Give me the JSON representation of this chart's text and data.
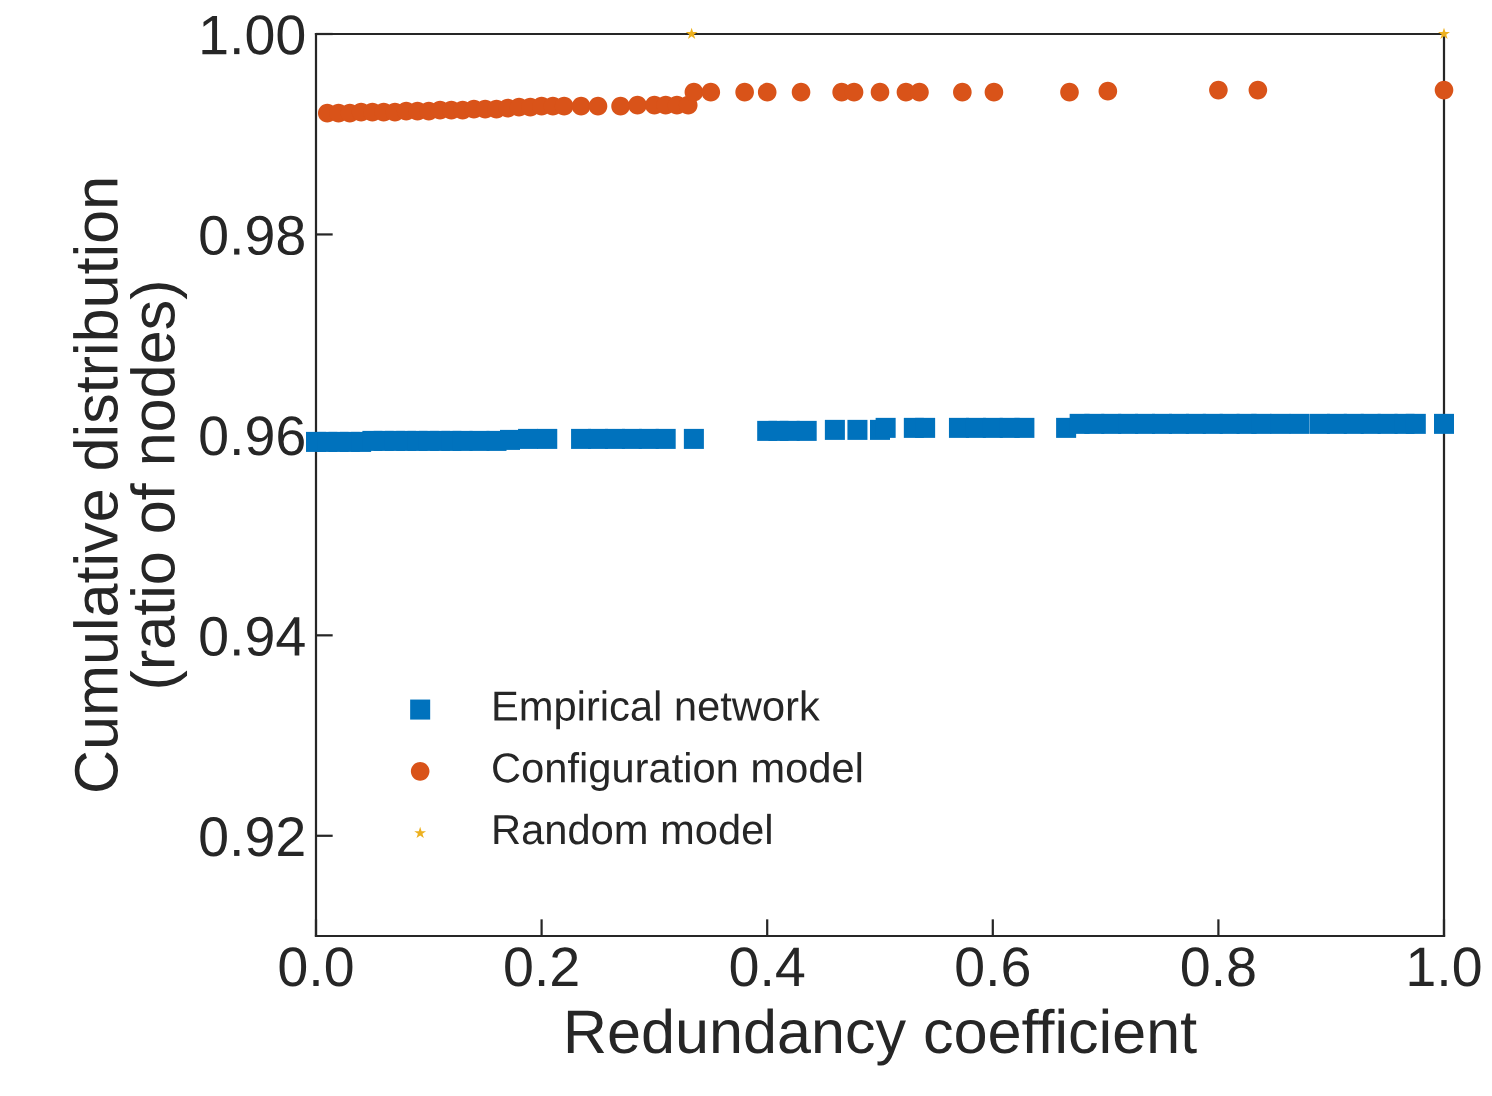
{
  "chart_data": {
    "type": "scatter",
    "xlabel": "Redundancy coefficient",
    "ylabel": "Cumulative distribution\n(ratio of nodes)",
    "xlim": [
      0,
      1
    ],
    "ylim": [
      0.91,
      1.0
    ],
    "xticks": [
      {
        "value": 0,
        "label": "0.0"
      },
      0.2,
      0.4,
      0.6,
      0.8,
      {
        "value": 1,
        "label": "1.0"
      }
    ],
    "yticks": [
      0.92,
      0.94,
      0.96,
      0.98,
      {
        "value": 1.0,
        "label": "1.00"
      }
    ],
    "legend": "bottom left",
    "grid": false,
    "series": [
      {
        "name": "Empirical network",
        "color": "#0072bd",
        "marker": "square",
        "x": [
          0.0,
          0.01,
          0.02,
          0.03,
          0.04,
          0.05,
          0.06,
          0.07,
          0.08,
          0.09,
          0.1,
          0.11,
          0.12,
          0.13,
          0.145,
          0.16,
          0.172,
          0.188,
          0.205,
          0.235,
          0.25,
          0.265,
          0.28,
          0.295,
          0.31,
          0.335,
          0.4,
          0.41,
          0.42,
          0.435,
          0.46,
          0.48,
          0.5,
          0.505,
          0.53,
          0.54,
          0.57,
          0.585,
          0.6,
          0.615,
          0.628,
          0.665,
          0.677,
          0.69,
          0.705,
          0.72,
          0.735,
          0.75,
          0.765,
          0.78,
          0.795,
          0.81,
          0.825,
          0.838,
          0.855,
          0.872,
          0.89,
          0.905,
          0.92,
          0.935,
          0.95,
          0.965,
          0.975,
          1.0
        ],
        "values": [
          0.9593,
          0.9593,
          0.9593,
          0.9593,
          0.9593,
          0.9594,
          0.9594,
          0.9594,
          0.9594,
          0.9594,
          0.9594,
          0.9594,
          0.9594,
          0.9594,
          0.9594,
          0.9594,
          0.9595,
          0.9596,
          0.9596,
          0.9596,
          0.9596,
          0.9596,
          0.9596,
          0.9596,
          0.9596,
          0.9596,
          0.9604,
          0.9604,
          0.9604,
          0.9604,
          0.9605,
          0.9605,
          0.9605,
          0.9607,
          0.9607,
          0.9607,
          0.9607,
          0.9607,
          0.9607,
          0.9607,
          0.9607,
          0.9607,
          0.9611,
          0.9611,
          0.9611,
          0.9611,
          0.9611,
          0.9611,
          0.9611,
          0.9611,
          0.9611,
          0.9611,
          0.9611,
          0.9611,
          0.9611,
          0.9611,
          0.9611,
          0.9611,
          0.9611,
          0.9611,
          0.9611,
          0.9611,
          0.9611,
          0.9611
        ]
      },
      {
        "name": "Configuration model",
        "color": "#d95319",
        "marker": "circle",
        "x": [
          0.01,
          0.02,
          0.03,
          0.04,
          0.05,
          0.06,
          0.07,
          0.08,
          0.09,
          0.1,
          0.11,
          0.12,
          0.13,
          0.14,
          0.15,
          0.16,
          0.17,
          0.18,
          0.19,
          0.2,
          0.21,
          0.22,
          0.235,
          0.25,
          0.27,
          0.285,
          0.3,
          0.31,
          0.32,
          0.33,
          0.335,
          0.35,
          0.38,
          0.4,
          0.43,
          0.466,
          0.477,
          0.5,
          0.523,
          0.535,
          0.573,
          0.601,
          0.668,
          0.702,
          0.8,
          0.835,
          1.0
        ],
        "values": [
          0.9921,
          0.9921,
          0.9921,
          0.9922,
          0.9922,
          0.9922,
          0.9922,
          0.9923,
          0.9923,
          0.9923,
          0.9924,
          0.9924,
          0.9924,
          0.9925,
          0.9925,
          0.9925,
          0.9926,
          0.9927,
          0.9927,
          0.9928,
          0.9928,
          0.9928,
          0.9928,
          0.9928,
          0.9928,
          0.9929,
          0.9929,
          0.9929,
          0.9929,
          0.9929,
          0.9942,
          0.9942,
          0.9942,
          0.9942,
          0.9942,
          0.9942,
          0.9942,
          0.9942,
          0.9942,
          0.9942,
          0.9942,
          0.9942,
          0.9942,
          0.9943,
          0.9944,
          0.9944,
          0.9944
        ]
      },
      {
        "name": "Random model",
        "color": "#edb120",
        "marker": "star",
        "x": [
          0.333,
          1.0
        ],
        "values": [
          1.0,
          1.0
        ]
      }
    ]
  }
}
